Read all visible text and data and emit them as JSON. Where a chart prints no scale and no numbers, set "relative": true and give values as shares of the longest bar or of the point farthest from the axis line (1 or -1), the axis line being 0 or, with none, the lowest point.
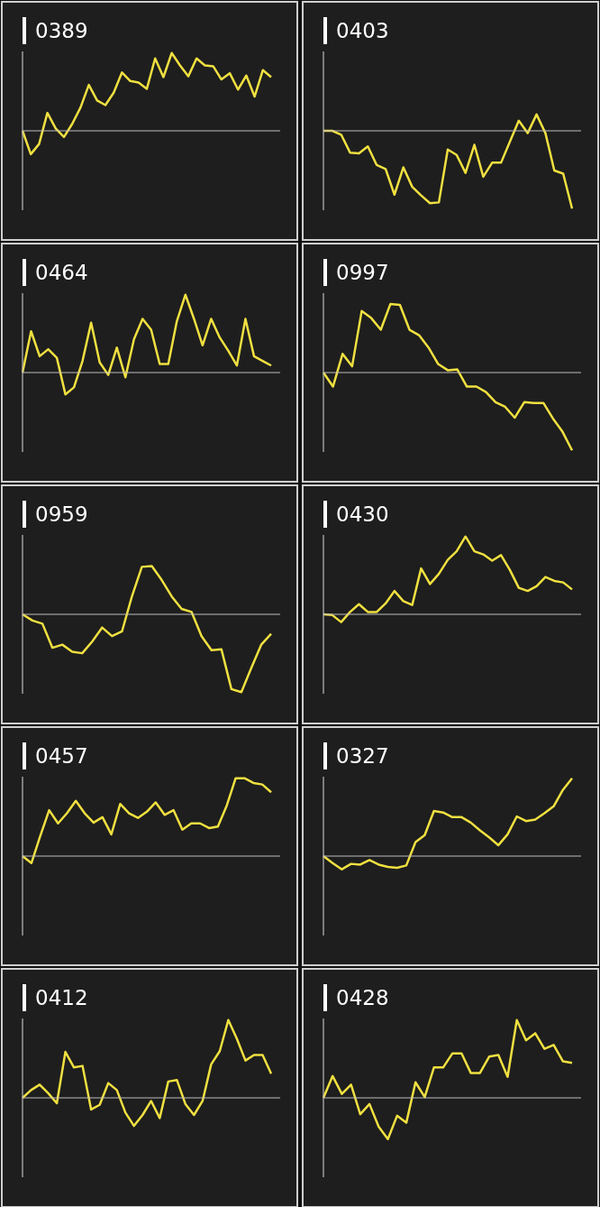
{
  "chart_data": [
    {
      "type": "line",
      "title": "0389",
      "relative": true,
      "marker": "none",
      "categories": [
        null,
        null,
        null,
        null,
        null,
        null,
        null,
        null,
        null,
        null,
        null,
        null,
        null,
        null,
        null,
        null,
        null,
        null,
        null,
        null,
        null,
        null,
        null,
        null,
        null,
        null,
        null,
        null,
        null,
        null,
        null
      ],
      "series": [
        {
          "color": "#f0e040",
          "values": [
            0,
            -0.3,
            -0.17,
            0.23,
            0.03,
            -0.08,
            0.09,
            0.3,
            0.59,
            0.39,
            0.33,
            0.49,
            0.75,
            0.64,
            0.62,
            0.54,
            0.93,
            0.69,
            1,
            0.84,
            0.7,
            0.93,
            0.84,
            0.83,
            0.66,
            0.74,
            0.53,
            0.71,
            0.44,
            0.78,
            0.69
          ]
        }
      ]
    },
    {
      "type": "line",
      "title": "0403",
      "relative": true,
      "marker": "none",
      "categories": [
        null,
        null,
        null,
        null,
        null,
        null,
        null,
        null,
        null,
        null,
        null,
        null,
        null,
        null,
        null,
        null,
        null,
        null,
        null,
        null,
        null,
        null,
        null,
        null,
        null,
        null,
        null,
        null,
        null
      ],
      "series": [
        {
          "color": "#f0e040",
          "values": [
            0,
            0,
            -0.05,
            -0.28,
            -0.29,
            -0.2,
            -0.44,
            -0.49,
            -0.82,
            -0.47,
            -0.72,
            -0.83,
            -0.93,
            -0.92,
            -0.24,
            -0.31,
            -0.54,
            -0.18,
            -0.59,
            -0.41,
            -0.41,
            -0.14,
            0.13,
            -0.03,
            0.21,
            -0.03,
            -0.51,
            -0.55,
            -1
          ]
        }
      ]
    },
    {
      "type": "line",
      "title": "0464",
      "relative": true,
      "marker": "none",
      "categories": [
        null,
        null,
        null,
        null,
        null,
        null,
        null,
        null,
        null,
        null,
        null,
        null,
        null,
        null,
        null,
        null,
        null,
        null,
        null,
        null,
        null,
        null,
        null,
        null,
        null,
        null,
        null,
        null,
        null,
        null
      ],
      "series": [
        {
          "color": "#f0e040",
          "values": [
            0,
            0.53,
            0.21,
            0.3,
            0.19,
            -0.28,
            -0.19,
            0.15,
            0.64,
            0.13,
            -0.03,
            0.32,
            -0.06,
            0.43,
            0.69,
            0.55,
            0.11,
            0.11,
            0.66,
            1,
            0.69,
            0.35,
            0.69,
            0.45,
            0.28,
            0.09,
            0.69,
            0.21,
            0.15,
            0.09
          ]
        }
      ]
    },
    {
      "type": "line",
      "title": "0997",
      "relative": true,
      "marker": "none",
      "categories": [
        null,
        null,
        null,
        null,
        null,
        null,
        null,
        null,
        null,
        null,
        null,
        null,
        null,
        null,
        null,
        null,
        null,
        null,
        null,
        null,
        null,
        null,
        null,
        null,
        null,
        null,
        null
      ],
      "series": [
        {
          "color": "#f0e040",
          "values": [
            0,
            -0.18,
            0.24,
            0.08,
            0.79,
            0.7,
            0.55,
            0.88,
            0.87,
            0.55,
            0.48,
            0.32,
            0.11,
            0.03,
            0.04,
            -0.18,
            -0.18,
            -0.25,
            -0.38,
            -0.44,
            -0.58,
            -0.38,
            -0.39,
            -0.39,
            -0.59,
            -0.76,
            -1
          ]
        }
      ]
    },
    {
      "type": "line",
      "title": "0959",
      "relative": true,
      "marker": "none",
      "categories": [
        null,
        null,
        null,
        null,
        null,
        null,
        null,
        null,
        null,
        null,
        null,
        null,
        null,
        null,
        null,
        null,
        null,
        null,
        null,
        null,
        null,
        null,
        null,
        null,
        null,
        null
      ],
      "series": [
        {
          "color": "#f0e040",
          "values": [
            0,
            -0.08,
            -0.12,
            -0.43,
            -0.39,
            -0.48,
            -0.5,
            -0.35,
            -0.17,
            -0.28,
            -0.22,
            0.23,
            0.61,
            0.62,
            0.44,
            0.23,
            0.07,
            0.03,
            -0.28,
            -0.46,
            -0.45,
            -0.96,
            -1,
            -0.69,
            -0.39,
            -0.25
          ]
        }
      ]
    },
    {
      "type": "line",
      "title": "0430",
      "relative": true,
      "marker": "none",
      "categories": [
        null,
        null,
        null,
        null,
        null,
        null,
        null,
        null,
        null,
        null,
        null,
        null,
        null,
        null,
        null,
        null,
        null,
        null,
        null,
        null,
        null,
        null,
        null,
        null,
        null,
        null,
        null,
        null,
        null
      ],
      "series": [
        {
          "color": "#f0e040",
          "values": [
            0,
            -0.01,
            -0.1,
            0.03,
            0.13,
            0.03,
            0.03,
            0.14,
            0.3,
            0.17,
            0.12,
            0.59,
            0.39,
            0.52,
            0.7,
            0.81,
            1,
            0.81,
            0.77,
            0.69,
            0.76,
            0.57,
            0.34,
            0.3,
            0.36,
            0.48,
            0.43,
            0.41,
            0.32
          ]
        }
      ]
    },
    {
      "type": "line",
      "title": "0457",
      "relative": true,
      "marker": "none",
      "categories": [
        null,
        null,
        null,
        null,
        null,
        null,
        null,
        null,
        null,
        null,
        null,
        null,
        null,
        null,
        null,
        null,
        null,
        null,
        null,
        null,
        null,
        null,
        null,
        null,
        null,
        null,
        null,
        null,
        null
      ],
      "series": [
        {
          "color": "#f0e040",
          "values": [
            0,
            -0.09,
            0.26,
            0.59,
            0.42,
            0.55,
            0.71,
            0.55,
            0.43,
            0.5,
            0.28,
            0.67,
            0.55,
            0.49,
            0.57,
            0.69,
            0.53,
            0.59,
            0.34,
            0.42,
            0.42,
            0.36,
            0.38,
            0.65,
            1,
            1,
            0.94,
            0.92,
            0.82
          ]
        }
      ]
    },
    {
      "type": "line",
      "title": "0327",
      "relative": true,
      "marker": "none",
      "categories": [
        null,
        null,
        null,
        null,
        null,
        null,
        null,
        null,
        null,
        null,
        null,
        null,
        null,
        null,
        null,
        null,
        null,
        null,
        null,
        null,
        null,
        null,
        null,
        null,
        null,
        null,
        null,
        null
      ],
      "series": [
        {
          "color": "#f0e040",
          "values": [
            0,
            -0.09,
            -0.17,
            -0.1,
            -0.11,
            -0.05,
            -0.11,
            -0.14,
            -0.15,
            -0.12,
            0.18,
            0.27,
            0.58,
            0.56,
            0.5,
            0.5,
            0.43,
            0.33,
            0.24,
            0.14,
            0.28,
            0.51,
            0.45,
            0.47,
            0.55,
            0.64,
            0.85,
            1
          ]
        }
      ]
    },
    {
      "type": "line",
      "title": "0412",
      "relative": true,
      "marker": "none",
      "categories": [
        null,
        null,
        null,
        null,
        null,
        null,
        null,
        null,
        null,
        null,
        null,
        null,
        null,
        null,
        null,
        null,
        null,
        null,
        null,
        null,
        null,
        null,
        null,
        null,
        null,
        null,
        null,
        null,
        null,
        null
      ],
      "series": [
        {
          "color": "#f0e040",
          "values": [
            0,
            0.1,
            0.17,
            0.06,
            -0.07,
            0.59,
            0.39,
            0.41,
            -0.15,
            -0.09,
            0.19,
            0.1,
            -0.19,
            -0.36,
            -0.22,
            -0.04,
            -0.26,
            0.21,
            0.23,
            -0.08,
            -0.22,
            -0.04,
            0.43,
            0.6,
            1,
            0.76,
            0.48,
            0.55,
            0.55,
            0.31
          ]
        }
      ]
    },
    {
      "type": "line",
      "title": "0428",
      "relative": true,
      "marker": "none",
      "categories": [
        null,
        null,
        null,
        null,
        null,
        null,
        null,
        null,
        null,
        null,
        null,
        null,
        null,
        null,
        null,
        null,
        null,
        null,
        null,
        null,
        null,
        null,
        null,
        null,
        null,
        null,
        null,
        null
      ],
      "series": [
        {
          "color": "#f0e040",
          "values": [
            0,
            0.28,
            0.05,
            0.17,
            -0.21,
            -0.08,
            -0.37,
            -0.53,
            -0.23,
            -0.32,
            0.2,
            0.01,
            0.39,
            0.39,
            0.57,
            0.57,
            0.32,
            0.32,
            0.53,
            0.55,
            0.27,
            1,
            0.74,
            0.83,
            0.63,
            0.68,
            0.47,
            0.45
          ]
        }
      ]
    }
  ]
}
